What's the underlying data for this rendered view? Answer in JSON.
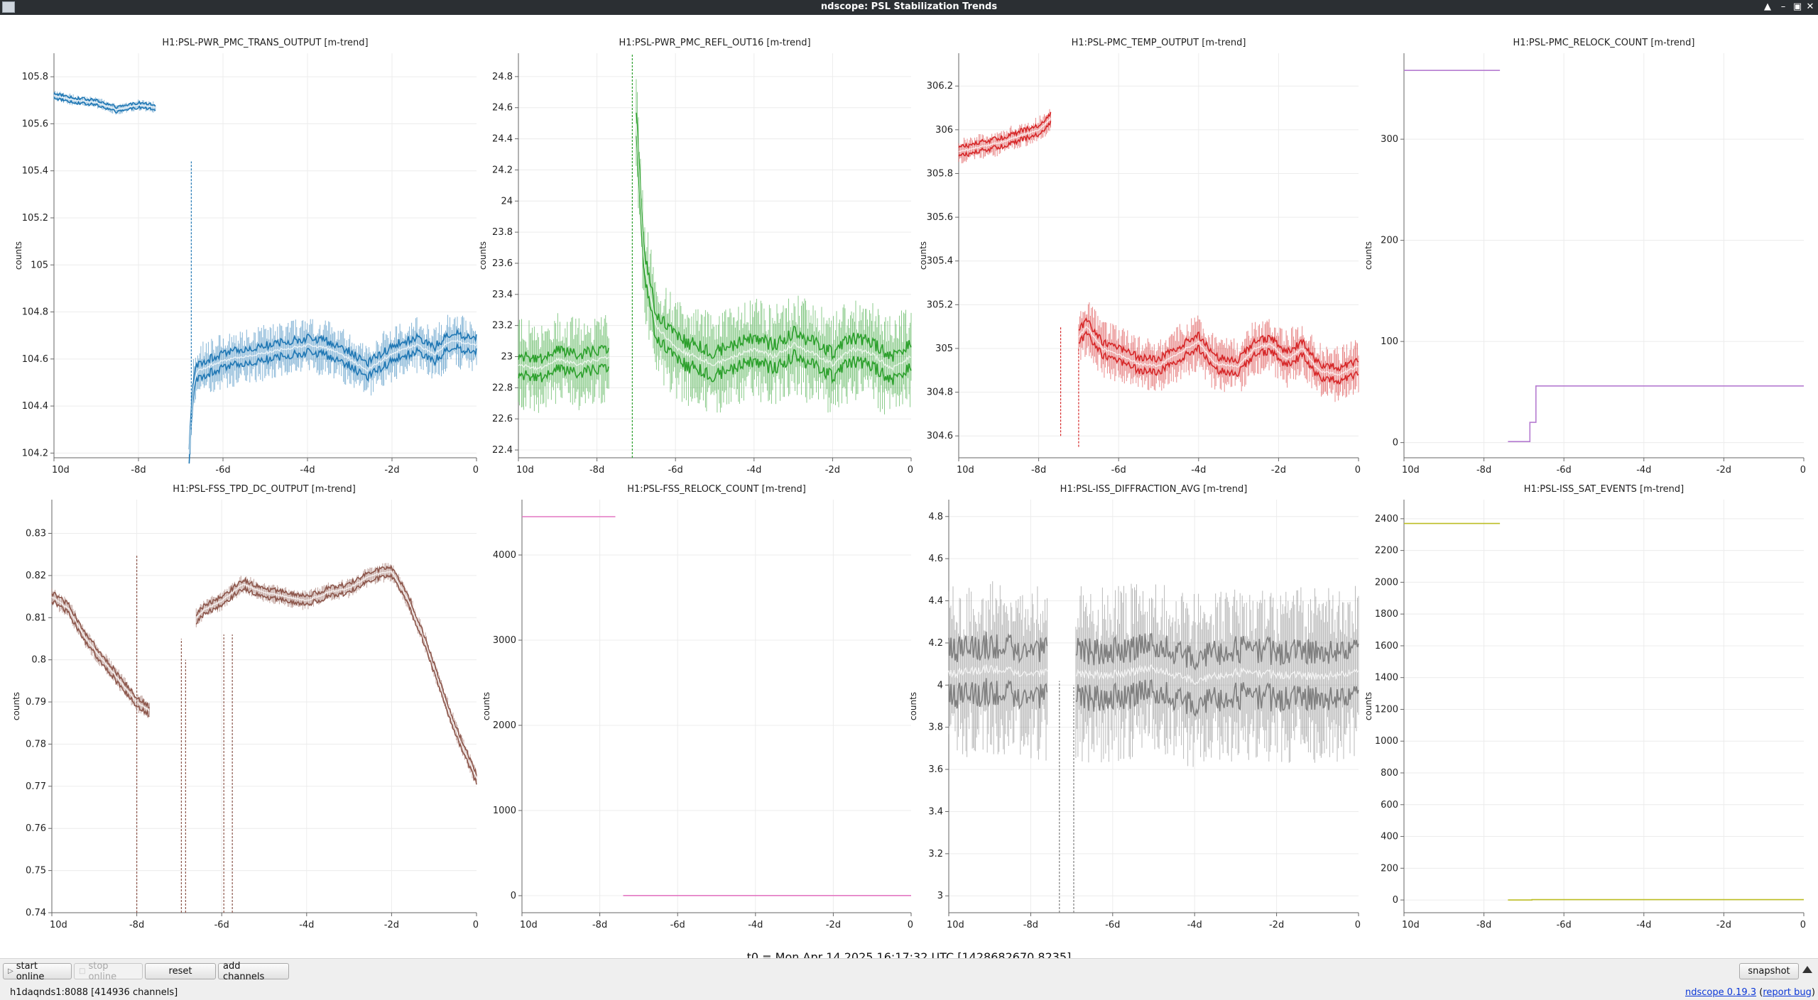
{
  "window": {
    "title": "ndscope: PSL Stabilization Trends",
    "controls": [
      "▲",
      "–",
      "▣",
      "✕"
    ]
  },
  "axis": {
    "x_ticks": [
      "10d",
      "-8d",
      "-6d",
      "-4d",
      "-2d",
      "0"
    ],
    "y_label": "counts"
  },
  "plots": [
    {
      "title": "H1:PSL-PWR_PMC_TRANS_OUTPUT [m-trend]",
      "color": "#1f77b4",
      "chart_data": {
        "type": "line",
        "xlim": [
          -10,
          0
        ],
        "ylim": [
          104.18,
          105.9
        ],
        "yticks": [
          104.2,
          104.4,
          104.6,
          104.8,
          105,
          105.2,
          105.4,
          105.6,
          105.8
        ],
        "ytick_labels": [
          "104.2",
          "104.4",
          "104.6",
          "104.8",
          "105",
          "105.2",
          "105.4",
          "105.6",
          "105.8"
        ],
        "segments": [
          {
            "x": [
              -10,
              -9.5,
              -9,
              -8.5,
              -8,
              -7.6
            ],
            "mean": [
              105.72,
              105.7,
              105.69,
              105.66,
              105.68,
              105.67
            ],
            "spread": 0.02,
            "band": 0.02
          },
          {
            "x": [
              -6.8,
              -6.7,
              -6.6,
              -6.2,
              -5.8,
              -5.2,
              -4.6,
              -4,
              -3.4,
              -3,
              -2.6,
              -2.2,
              -1.8,
              -1.4,
              -1,
              -0.6,
              0
            ],
            "mean": [
              104.2,
              104.48,
              104.55,
              104.58,
              104.6,
              104.62,
              104.64,
              104.66,
              104.64,
              104.6,
              104.55,
              104.6,
              104.64,
              104.66,
              104.62,
              104.68,
              104.66
            ],
            "spread": 0.1,
            "band": 0.06
          }
        ],
        "spikes": [
          {
            "x": -6.75,
            "from": 104.3,
            "to": 105.44
          }
        ]
      }
    },
    {
      "title": "H1:PSL-PWR_PMC_REFL_OUT16 [m-trend]",
      "color": "#2ca02c",
      "chart_data": {
        "type": "line",
        "xlim": [
          -10,
          0
        ],
        "ylim": [
          22.35,
          24.95
        ],
        "yticks": [
          22.4,
          22.6,
          22.8,
          23,
          23.2,
          23.4,
          23.6,
          23.8,
          24,
          24.2,
          24.4,
          24.6,
          24.8
        ],
        "ytick_labels": [
          "22.4",
          "22.6",
          "22.8",
          "23",
          "23.2",
          "23.4",
          "23.6",
          "23.8",
          "24",
          "24.2",
          "24.4",
          "24.6",
          "24.8"
        ],
        "segments": [
          {
            "x": [
              -10,
              -9.5,
              -9,
              -8.5,
              -7.7
            ],
            "mean": [
              22.95,
              22.92,
              22.98,
              22.95,
              23.0
            ],
            "spread": 0.25,
            "band": 0.12
          },
          {
            "x": [
              -7,
              -6.8,
              -6.5,
              -6,
              -5.5,
              -5,
              -4.5,
              -4,
              -3.5,
              -3,
              -2.5,
              -2,
              -1.5,
              -1,
              -0.5,
              0
            ],
            "mean": [
              24.5,
              23.6,
              23.2,
              23.05,
              23.0,
              22.95,
              23.0,
              23.05,
              23.0,
              23.08,
              23.02,
              22.95,
              23.05,
              23.02,
              22.92,
              23.0
            ],
            "spread": 0.28,
            "band": 0.15
          }
        ],
        "spikes": [
          {
            "x": -7.1,
            "from": 22.35,
            "to": 24.95
          }
        ]
      }
    },
    {
      "title": "H1:PSL-PMC_TEMP_OUTPUT [m-trend]",
      "color": "#d62728",
      "chart_data": {
        "type": "line",
        "xlim": [
          -10,
          0
        ],
        "ylim": [
          304.5,
          306.35
        ],
        "yticks": [
          304.6,
          304.8,
          305,
          305.2,
          305.4,
          305.6,
          305.8,
          306,
          306.2
        ],
        "ytick_labels": [
          "304.6",
          "304.8",
          "305",
          "305.2",
          "305.4",
          "305.6",
          "305.8",
          "306",
          "306.2"
        ],
        "segments": [
          {
            "x": [
              -10,
              -9.5,
              -9,
              -8.5,
              -8,
              -7.7
            ],
            "mean": [
              305.9,
              305.92,
              305.94,
              305.97,
              306.0,
              306.05
            ],
            "spread": 0.05,
            "band": 0.04
          },
          {
            "x": [
              -7,
              -6.8,
              -6.4,
              -6,
              -5.5,
              -5,
              -4.6,
              -4,
              -3.6,
              -3,
              -2.6,
              -2.2,
              -1.8,
              -1.4,
              -1,
              -0.5,
              0
            ],
            "mean": [
              305.05,
              305.1,
              305.0,
              304.97,
              304.93,
              304.92,
              304.97,
              305.03,
              304.93,
              304.92,
              305.0,
              305.02,
              304.95,
              305.0,
              304.9,
              304.88,
              304.92
            ],
            "spread": 0.11,
            "band": 0.06
          }
        ],
        "spikes": [
          {
            "x": -7.45,
            "from": 304.6,
            "to": 305.1
          },
          {
            "x": -7.0,
            "from": 304.55,
            "to": 305.0
          }
        ]
      }
    },
    {
      "title": "H1:PSL-PMC_RELOCK_COUNT [m-trend]",
      "color": "#b57bd0",
      "chart_data": {
        "type": "line",
        "xlim": [
          -10,
          0
        ],
        "ylim": [
          -15,
          385
        ],
        "yticks": [
          0,
          100,
          200,
          300
        ],
        "ytick_labels": [
          "0",
          "100",
          "200",
          "300"
        ],
        "steps": [
          {
            "x": [
              -10,
              -7.6
            ],
            "y": [
              368,
              368
            ]
          },
          {
            "x": [
              -7.4,
              -6.85,
              -6.85,
              -6.7,
              -6.7,
              0
            ],
            "y": [
              1,
              1,
              20,
              20,
              56,
              56
            ]
          }
        ]
      }
    },
    {
      "title": "H1:PSL-FSS_TPD_DC_OUTPUT [m-trend]",
      "color": "#8c564b",
      "chart_data": {
        "type": "line",
        "xlim": [
          -10,
          0
        ],
        "ylim": [
          0.74,
          0.838
        ],
        "yticks": [
          0.74,
          0.75,
          0.76,
          0.77,
          0.78,
          0.79,
          0.8,
          0.81,
          0.82,
          0.83
        ],
        "ytick_labels": [
          "0.74",
          "0.75",
          "0.76",
          "0.77",
          "0.78",
          "0.79",
          "0.8",
          "0.81",
          "0.82",
          "0.83"
        ],
        "segments": [
          {
            "x": [
              -10,
              -9.6,
              -9.2,
              -8.8,
              -8.4,
              -8,
              -7.7
            ],
            "mean": [
              0.815,
              0.812,
              0.805,
              0.8,
              0.795,
              0.79,
              0.788
            ],
            "spread": 0.002,
            "band": 0.002
          },
          {
            "x": [
              -6.6,
              -6.4,
              -6,
              -5.5,
              -5,
              -4.5,
              -4,
              -3.5,
              -3,
              -2.5,
              -2,
              -1.6,
              -1.2,
              -0.8,
              -0.4,
              0
            ],
            "mean": [
              0.81,
              0.812,
              0.814,
              0.818,
              0.816,
              0.815,
              0.814,
              0.816,
              0.817,
              0.82,
              0.821,
              0.814,
              0.804,
              0.792,
              0.781,
              0.772
            ],
            "spread": 0.002,
            "band": 0.002
          }
        ],
        "spikes": [
          {
            "x": -8.0,
            "from": 0.74,
            "to": 0.825
          },
          {
            "x": -6.95,
            "from": 0.74,
            "to": 0.805
          },
          {
            "x": -6.85,
            "from": 0.74,
            "to": 0.8
          },
          {
            "x": -5.95,
            "from": 0.74,
            "to": 0.806
          },
          {
            "x": -5.75,
            "from": 0.74,
            "to": 0.806
          }
        ]
      }
    },
    {
      "title": "H1:PSL-FSS_RELOCK_COUNT [m-trend]",
      "color": "#e377c2",
      "chart_data": {
        "type": "line",
        "xlim": [
          -10,
          0
        ],
        "ylim": [
          -200,
          4650
        ],
        "yticks": [
          0,
          1000,
          2000,
          3000,
          4000
        ],
        "ytick_labels": [
          "0",
          "1000",
          "2000",
          "3000",
          "4000"
        ],
        "steps": [
          {
            "x": [
              -10,
              -7.6
            ],
            "y": [
              4450,
              4450
            ]
          },
          {
            "x": [
              -7.4,
              0
            ],
            "y": [
              2,
              2
            ]
          }
        ]
      }
    },
    {
      "title": "H1:PSL-ISS_DIFFRACTION_AVG [m-trend]",
      "color": "#7f7f7f",
      "chart_data": {
        "type": "line",
        "xlim": [
          -10,
          0
        ],
        "ylim": [
          2.92,
          4.88
        ],
        "yticks": [
          3,
          3.2,
          3.4,
          3.6,
          3.8,
          4,
          4.2,
          4.4,
          4.6,
          4.8
        ],
        "ytick_labels": [
          "3",
          "3.2",
          "3.4",
          "3.6",
          "3.8",
          "4",
          "4.2",
          "4.4",
          "4.6",
          "4.8"
        ],
        "segments": [
          {
            "x": [
              -10,
              -9,
              -8,
              -7.6
            ],
            "mean": [
              4.05,
              4.08,
              4.05,
              4.06
            ],
            "spread": 0.35,
            "band": 0.22
          },
          {
            "x": [
              -6.9,
              -6,
              -5,
              -4,
              -3,
              -2,
              -1,
              0
            ],
            "mean": [
              4.05,
              4.05,
              4.08,
              4.02,
              4.06,
              4.05,
              4.04,
              4.06
            ],
            "spread": 0.35,
            "band": 0.22
          }
        ],
        "spikes": [
          {
            "x": -7.3,
            "from": 2.92,
            "to": 4.02
          },
          {
            "x": -6.95,
            "from": 2.92,
            "to": 4.0
          }
        ]
      }
    },
    {
      "title": "H1:PSL-ISS_SAT_EVENTS [m-trend]",
      "color": "#bcbd22",
      "chart_data": {
        "type": "line",
        "xlim": [
          -10,
          0
        ],
        "ylim": [
          -80,
          2520
        ],
        "yticks": [
          0,
          200,
          400,
          600,
          800,
          1000,
          1200,
          1400,
          1600,
          1800,
          2000,
          2200,
          2400
        ],
        "ytick_labels": [
          "0",
          "200",
          "400",
          "600",
          "800",
          "1000",
          "1200",
          "1400",
          "1600",
          "1800",
          "2000",
          "2200",
          "2400"
        ],
        "steps": [
          {
            "x": [
              -10,
              -7.6
            ],
            "y": [
              2370,
              2370
            ]
          },
          {
            "x": [
              -7.4,
              -6.8,
              -6.8,
              0
            ],
            "y": [
              0,
              0,
              2,
              2
            ]
          }
        ]
      }
    }
  ],
  "t0_label": "t0 = Mon Apr 14 2025 16:17:32 UTC [1428682670.8235]",
  "buttons": {
    "start_online": "start online",
    "stop_online": "stop online",
    "reset": "reset",
    "add_channels": "add channels",
    "snapshot": "snapshot"
  },
  "status": {
    "server": "h1daqnds1:8088  [414936 channels]",
    "app_link": "ndscope 0.19.3",
    "bug_link": "report bug"
  }
}
